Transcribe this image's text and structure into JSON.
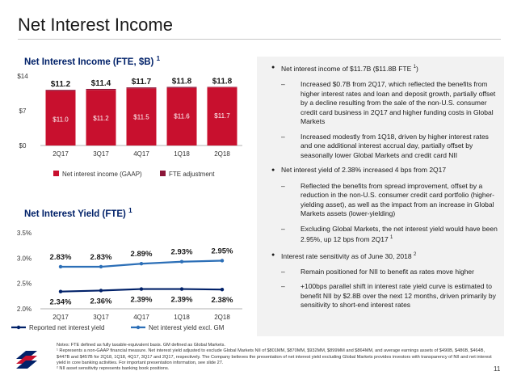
{
  "page": {
    "title": "Net Interest Income",
    "page_number": "11"
  },
  "colors": {
    "gaap_bar": "#c8102e",
    "fte_adjustment": "#8b1538",
    "line_dark": "#012169",
    "line_light": "#2c6fb7",
    "panel_bg": "#f2f2f2",
    "title_blue": "#012169"
  },
  "chart_data": [
    {
      "type": "bar",
      "title": "Net Interest Income (FTE, $B)",
      "title_footnote": "1",
      "categories": [
        "2Q17",
        "3Q17",
        "4Q17",
        "1Q18",
        "2Q18"
      ],
      "series": [
        {
          "name": "Net interest income (GAAP)",
          "values": [
            11.0,
            11.2,
            11.5,
            11.6,
            11.7
          ],
          "labels": [
            "$11.0",
            "$11.2",
            "$11.5",
            "$11.6",
            "$11.7"
          ]
        },
        {
          "name": "FTE adjustment",
          "values": [
            0.2,
            0.2,
            0.2,
            0.2,
            0.1
          ]
        }
      ],
      "totals": {
        "values": [
          11.2,
          11.4,
          11.7,
          11.8,
          11.8
        ],
        "labels": [
          "$11.2",
          "$11.4",
          "$11.7",
          "$11.8",
          "$11.8"
        ]
      },
      "yticks": [
        "$0",
        "$7",
        "$14"
      ],
      "ylim": [
        0,
        14
      ],
      "stacked": true,
      "legend_position": "bottom"
    },
    {
      "type": "line",
      "title": "Net Interest Yield (FTE)",
      "title_footnote": "1",
      "categories": [
        "2Q17",
        "3Q17",
        "4Q17",
        "1Q18",
        "2Q18"
      ],
      "series": [
        {
          "name": "Reported net interest yield",
          "values": [
            2.34,
            2.36,
            2.39,
            2.39,
            2.38
          ],
          "labels": [
            "2.34%",
            "2.36%",
            "2.39%",
            "2.39%",
            "2.38%"
          ]
        },
        {
          "name": "Net interest yield excl. GM",
          "values": [
            2.83,
            2.83,
            2.89,
            2.93,
            2.95
          ],
          "labels": [
            "2.83%",
            "2.83%",
            "2.89%",
            "2.93%",
            "2.95%"
          ]
        }
      ],
      "yticks": [
        "2.0%",
        "2.5%",
        "3.0%",
        "3.5%"
      ],
      "ylim": [
        2.0,
        3.5
      ],
      "legend_position": "bottom"
    }
  ],
  "bullets": [
    {
      "text": "Net interest income of $11.7B ($11.8B FTE ",
      "sup": "1",
      "tail": ")",
      "subs": [
        {
          "text": "Increased $0.7B from 2Q17, which reflected the benefits from higher interest rates and loan and deposit growth, partially offset by a decline resulting from the sale of the non-U.S. consumer credit card business in 2Q17 and higher funding costs in Global Markets"
        },
        {
          "text": "Increased modestly from 1Q18, driven by higher interest rates and one additional interest accrual day, partially offset by seasonally lower Global Markets and credit card NII"
        }
      ]
    },
    {
      "text": "Net interest yield of 2.38% increased 4 bps from 2Q17",
      "sup": "",
      "tail": "",
      "subs": [
        {
          "text": "Reflected the benefits from spread improvement, offset by a reduction in the non-U.S. consumer credit card portfolio (higher-yielding asset), as well as the impact from an increase in Global Markets assets (lower-yielding)"
        },
        {
          "text": "Excluding Global Markets, the net interest yield would have been 2.95%, up 12 bps from 2Q17 ",
          "sup": "1"
        }
      ]
    },
    {
      "text": "Interest rate sensitivity as of June 30, 2018 ",
      "sup": "2",
      "tail": "",
      "subs": [
        {
          "text": "Remain positioned for NII to benefit as rates move higher"
        },
        {
          "text": "+100bps parallel shift in interest rate yield curve is estimated to benefit NII by $2.8B over the next 12 months, driven primarily by sensitivity to short-end interest rates"
        }
      ]
    }
  ],
  "footnotes": [
    "Notes: FTE defined as fully taxable-equivalent basis. GM defined as Global Markets.",
    "¹ Represents a non-GAAP financial measure. Net interest yield adjusted to exclude Global Markets NII of $801MM, $870MM, $932MM, $899MM and $864MM, and average earnings assets of $490B, $486B, $464B, $447B and $457B for 2Q18, 1Q18, 4Q17, 3Q17 and 2Q17, respectively. The Company believes the presentation of net interest yield excluding Global Markets provides investors with transparency of NII and net interest yield in core banking activities. For important presentation information, see slide 27.",
    "² NII asset sensitivity represents banking book positions."
  ]
}
